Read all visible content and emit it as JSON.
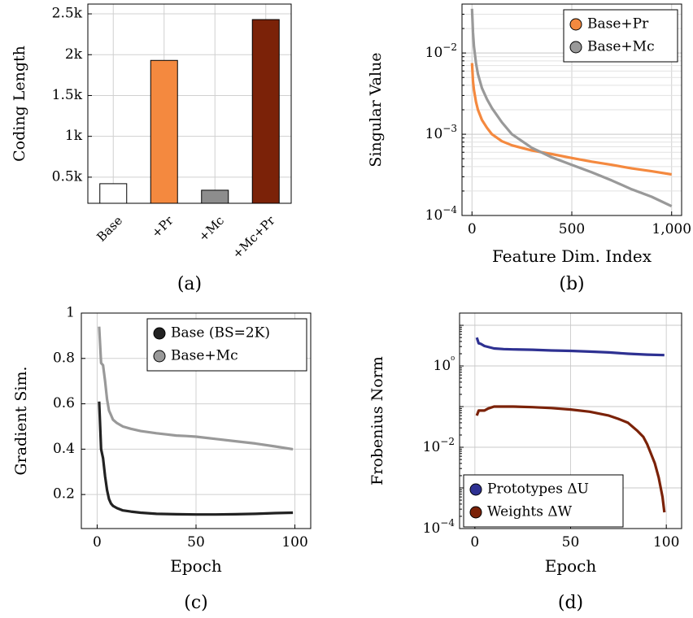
{
  "chart_data": [
    {
      "panel": "(a)",
      "type": "bar",
      "xlabel": "",
      "ylabel": "Coding Length",
      "categories": [
        "Base",
        "+Pr",
        "+Mc",
        "+Mc+Pr"
      ],
      "values": [
        420,
        1930,
        340,
        2430
      ],
      "bar_colors": [
        "#ffffff",
        "#f4893f",
        "#8d8d8d",
        "#7b2208"
      ],
      "ylim": [
        180,
        2620
      ],
      "yticks": [
        500,
        1000,
        1500,
        2000,
        2500
      ],
      "ytick_labels": [
        "0.5k",
        "1k",
        "1.5k",
        "2k",
        "2.5k"
      ],
      "grid": true
    },
    {
      "panel": "(b)",
      "type": "line",
      "xlabel": "Feature Dim. Index",
      "ylabel": "Singular Value",
      "yscale": "log",
      "xlim": [
        -50,
        1050
      ],
      "ylim": [
        0.0001,
        0.04
      ],
      "xticks": [
        0,
        500,
        1000
      ],
      "xtick_labels": [
        "0",
        "500",
        "1,000"
      ],
      "ytick_labels": [
        "10−4",
        "10−3",
        "10−2"
      ],
      "legend_position": "top-right",
      "grid": true,
      "series": [
        {
          "name": "Base+Pr",
          "color": "#f4893f",
          "x": [
            0,
            5,
            10,
            20,
            30,
            50,
            75,
            100,
            150,
            200,
            300,
            400,
            500,
            600,
            700,
            800,
            900,
            1000
          ],
          "y": [
            0.0075,
            0.0045,
            0.0035,
            0.0025,
            0.002,
            0.0015,
            0.0012,
            0.001,
            0.00082,
            0.00073,
            0.00063,
            0.00057,
            0.00051,
            0.00046,
            0.00042,
            0.00038,
            0.00035,
            0.00032
          ]
        },
        {
          "name": "Base+Mc",
          "color": "#999999",
          "x": [
            0,
            5,
            10,
            20,
            30,
            50,
            75,
            100,
            150,
            200,
            300,
            400,
            500,
            600,
            700,
            800,
            900,
            1000
          ],
          "y": [
            0.035,
            0.018,
            0.012,
            0.0075,
            0.0055,
            0.0037,
            0.0027,
            0.0021,
            0.0014,
            0.001,
            0.00068,
            0.00052,
            0.00042,
            0.00034,
            0.00027,
            0.00021,
            0.00017,
            0.00013
          ]
        }
      ]
    },
    {
      "panel": "(c)",
      "type": "line",
      "xlabel": "Epoch",
      "ylabel": "Gradient Sim.",
      "xlim": [
        -8,
        108
      ],
      "ylim": [
        0.05,
        1.0
      ],
      "xticks": [
        0,
        50,
        100
      ],
      "yticks": [
        0.2,
        0.4,
        0.6,
        0.8,
        1.0
      ],
      "ytick_labels": [
        "0.2",
        "0.4",
        "0.6",
        "0.8",
        "1"
      ],
      "legend_position": "top-right",
      "grid": true,
      "series": [
        {
          "name": "Base (BS=2K)",
          "color": "#222222",
          "x": [
            1,
            2,
            3,
            4,
            5,
            6,
            7,
            8,
            10,
            13,
            17,
            22,
            30,
            40,
            50,
            60,
            70,
            80,
            90,
            99
          ],
          "y": [
            0.61,
            0.4,
            0.36,
            0.28,
            0.22,
            0.18,
            0.16,
            0.15,
            0.14,
            0.13,
            0.125,
            0.12,
            0.115,
            0.113,
            0.112,
            0.112,
            0.113,
            0.115,
            0.118,
            0.12
          ]
        },
        {
          "name": "Base+Mc",
          "color": "#999999",
          "x": [
            1,
            2,
            3,
            4,
            5,
            6,
            7,
            8,
            10,
            13,
            17,
            22,
            30,
            35,
            40,
            45,
            50,
            60,
            70,
            80,
            90,
            99
          ],
          "y": [
            0.94,
            0.78,
            0.77,
            0.7,
            0.62,
            0.57,
            0.55,
            0.53,
            0.515,
            0.5,
            0.49,
            0.48,
            0.47,
            0.465,
            0.46,
            0.458,
            0.455,
            0.445,
            0.435,
            0.425,
            0.412,
            0.4
          ]
        }
      ]
    },
    {
      "panel": "(d)",
      "type": "line",
      "xlabel": "Epoch",
      "ylabel": "Frobenius Norm",
      "yscale": "log",
      "xlim": [
        -8,
        108
      ],
      "ylim": [
        0.0001,
        20
      ],
      "xticks": [
        0,
        50,
        100
      ],
      "ytick_labels": [
        "10−4",
        "10−2",
        "10⁰"
      ],
      "legend_position": "bottom-left",
      "grid": true,
      "series": [
        {
          "name": "Prototypes ΔU",
          "color": "#2e3192",
          "x": [
            1,
            2,
            3,
            5,
            10,
            15,
            20,
            30,
            40,
            50,
            60,
            70,
            80,
            90,
            99
          ],
          "y": [
            5.0,
            3.6,
            3.5,
            3.1,
            2.7,
            2.6,
            2.55,
            2.5,
            2.4,
            2.35,
            2.25,
            2.15,
            2.0,
            1.9,
            1.85
          ]
        },
        {
          "name": "Weights ΔW",
          "color": "#7b2208",
          "x": [
            1,
            2,
            3,
            5,
            7,
            10,
            20,
            30,
            40,
            50,
            60,
            70,
            75,
            80,
            85,
            88,
            90,
            92,
            94,
            96,
            98,
            99
          ],
          "y": [
            0.06,
            0.08,
            0.08,
            0.08,
            0.09,
            0.1,
            0.1,
            0.097,
            0.092,
            0.085,
            0.075,
            0.06,
            0.05,
            0.04,
            0.025,
            0.018,
            0.012,
            0.007,
            0.004,
            0.0018,
            0.0006,
            0.00025
          ]
        }
      ]
    }
  ],
  "panel_labels": [
    "(a)",
    "(b)",
    "(c)",
    "(d)"
  ]
}
